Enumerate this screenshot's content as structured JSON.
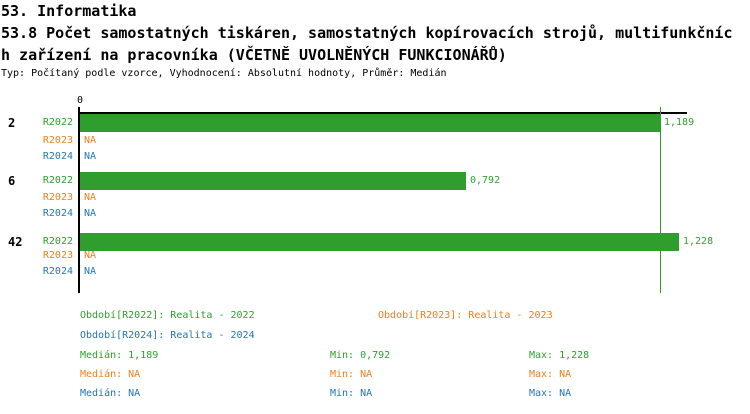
{
  "header": {
    "section_title": "53. Informatika",
    "indicator_title_line1": "53.8 Počet samostatných tiskáren, samostatných kopírovacích strojů, multifunkčníc",
    "indicator_title_line2": "h zařízení na pracovníka (VČETNĚ UVOLNĚNÝCH FUNKCIONÁŘŮ)",
    "meta_line": "Typ: Počítaný podle vzorce, Vyhodnocení: Absolutní hodnoty, Průměr: Medián"
  },
  "colors": {
    "series_r2022": "#2f9e2f",
    "series_r2023": "#ef7f1c",
    "series_r2024": "#2277b4",
    "axis": "#000000"
  },
  "chart_data": {
    "type": "bar",
    "orientation": "horizontal",
    "title": "53.8 Počet samostatných tiskáren, samostatných kopírovacích strojů, multifunkčních zařízení na pracovníka (VČETNĚ UVOLNĚNÝCH FUNKCIONÁŘŮ)",
    "x_axis": {
      "zero_tick_label": "0",
      "min": 0,
      "max_approx": 1.245,
      "gridlines": false
    },
    "median_reference_line": {
      "value": 1.189,
      "color": "#2f9e2f"
    },
    "series": [
      "R2022",
      "R2023",
      "R2024"
    ],
    "groups": [
      {
        "label": "2",
        "rows": [
          {
            "series": "R2022",
            "value": 1.189,
            "value_label": "1,189"
          },
          {
            "series": "R2023",
            "value": null,
            "value_label": "NA"
          },
          {
            "series": "R2024",
            "value": null,
            "value_label": "NA"
          }
        ]
      },
      {
        "label": "6",
        "rows": [
          {
            "series": "R2022",
            "value": 0.792,
            "value_label": "0,792"
          },
          {
            "series": "R2023",
            "value": null,
            "value_label": "NA"
          },
          {
            "series": "R2024",
            "value": null,
            "value_label": "NA"
          }
        ]
      },
      {
        "label": "42",
        "rows": [
          {
            "series": "R2022",
            "value": 1.228,
            "value_label": "1,228"
          },
          {
            "series": "R2023",
            "value": null,
            "value_label": "NA"
          },
          {
            "series": "R2024",
            "value": null,
            "value_label": "NA"
          }
        ]
      }
    ]
  },
  "legend": {
    "period_r2022": "Období[R2022]: Realita - 2022",
    "period_r2023": "Období[R2023]: Realita - 2023",
    "period_r2024": "Období[R2024]: Realita - 2024",
    "stats_r2022": {
      "median": "Medián: 1,189",
      "min": "Min: 0,792",
      "max": "Max: 1,228"
    },
    "stats_r2023": {
      "median": "Medián: NA",
      "min": "Min: NA",
      "max": "Max: NA"
    },
    "stats_r2024": {
      "median": "Medián: NA",
      "min": "Min: NA",
      "max": "Max: NA"
    }
  }
}
